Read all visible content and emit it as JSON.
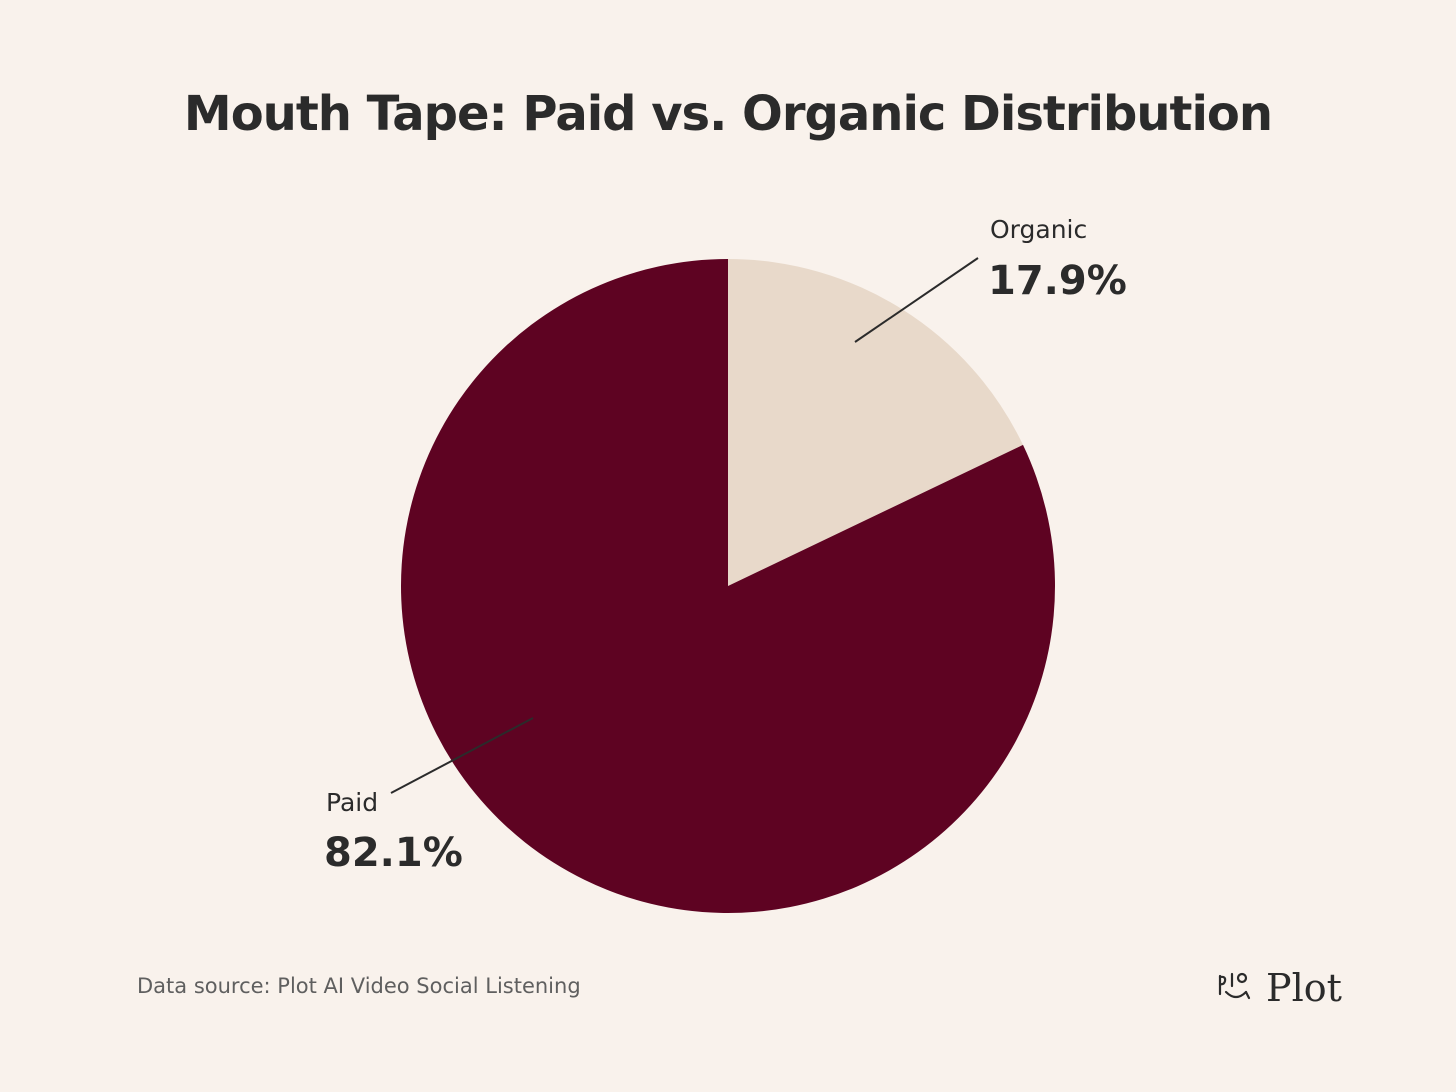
{
  "chart_data": {
    "type": "pie",
    "title": "Mouth Tape: Paid vs. Organic Distribution",
    "slices": [
      {
        "name": "Organic",
        "value": 17.9,
        "label": "17.9%",
        "color": "#e8d9ca"
      },
      {
        "name": "Paid",
        "value": 82.1,
        "label": "82.1%",
        "color": "#5e0322"
      }
    ],
    "source": "Data source: Plot AI Video Social Listening"
  },
  "brand": {
    "name": "Plot",
    "icon": "plot-smile-logo-icon"
  },
  "colors": {
    "background": "#f9f2ec",
    "text": "#2b2b2b",
    "muted_text": "#5f5f5f"
  }
}
